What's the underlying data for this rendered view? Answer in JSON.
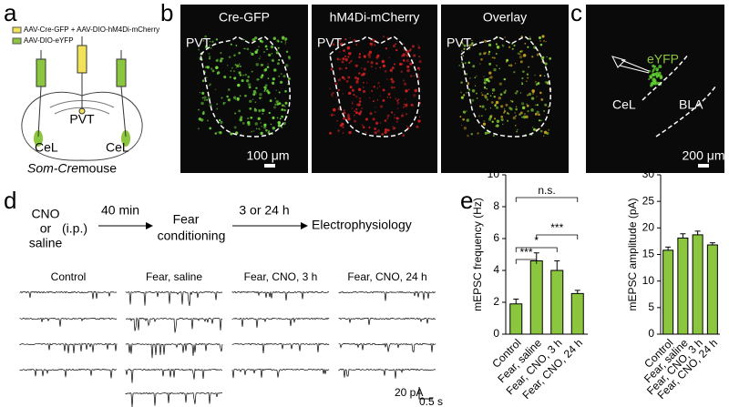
{
  "panel_labels": [
    "a",
    "b",
    "c",
    "d",
    "e"
  ],
  "panel_a": {
    "legend": [
      "AAV-Cre-GFP + AAV-DIO-hM4Di-mCherry",
      "AAV-DIO-eYFP"
    ],
    "labels": [
      "PVT",
      "CeL",
      "CeL"
    ],
    "caption_italic": "Som-Cre",
    "caption": "mouse"
  },
  "panel_b": {
    "titles": [
      "Cre-GFP",
      "hM4Di-mCherry",
      "Overlay"
    ],
    "region": "PVT",
    "scale": "100 μm"
  },
  "panel_c": {
    "labels": [
      "eYFP",
      "CeL",
      "BLA"
    ],
    "scale": "200 μm"
  },
  "panel_d": {
    "treatment": [
      "CNO",
      "or",
      "saline"
    ],
    "route": "(i.p.)",
    "delay1": "40 min",
    "step": [
      "Fear",
      "conditioning"
    ],
    "delay2": "3 or 24 h",
    "final": "Electrophysiology",
    "groups": [
      "Control",
      "Fear, saline",
      "Fear, CNO, 3 h",
      "Fear, CNO, 24 h"
    ],
    "scale_y": "20 pA",
    "scale_x": "0.5 s"
  },
  "chart_data": [
    {
      "type": "bar",
      "ylabel": "mEPSC frequency (Hz)",
      "categories": [
        "Control",
        "Fear, saline",
        "Fear, CNO, 3 h",
        "Fear, CNO, 24 h"
      ],
      "values": [
        1.9,
        4.6,
        4.0,
        2.55
      ],
      "errors": [
        0.3,
        0.5,
        0.6,
        0.2
      ],
      "color": "#8cc63f",
      "ylim": [
        0,
        10
      ],
      "yticks": [
        0,
        2,
        4,
        6,
        8,
        10
      ],
      "annotations": [
        "n.s.",
        "***",
        "*",
        "***"
      ]
    },
    {
      "type": "bar",
      "ylabel": "mEPSC amplitude (pA)",
      "categories": [
        "Control",
        "Fear, saline",
        "Fear, CNO, 3 h",
        "Fear, CNO, 24 h"
      ],
      "values": [
        15.8,
        18.1,
        18.7,
        16.8
      ],
      "errors": [
        0.6,
        0.8,
        0.7,
        0.4
      ],
      "color": "#8cc63f",
      "ylim": [
        0,
        30
      ],
      "yticks": [
        0,
        5,
        10,
        15,
        20,
        25,
        30
      ]
    }
  ]
}
